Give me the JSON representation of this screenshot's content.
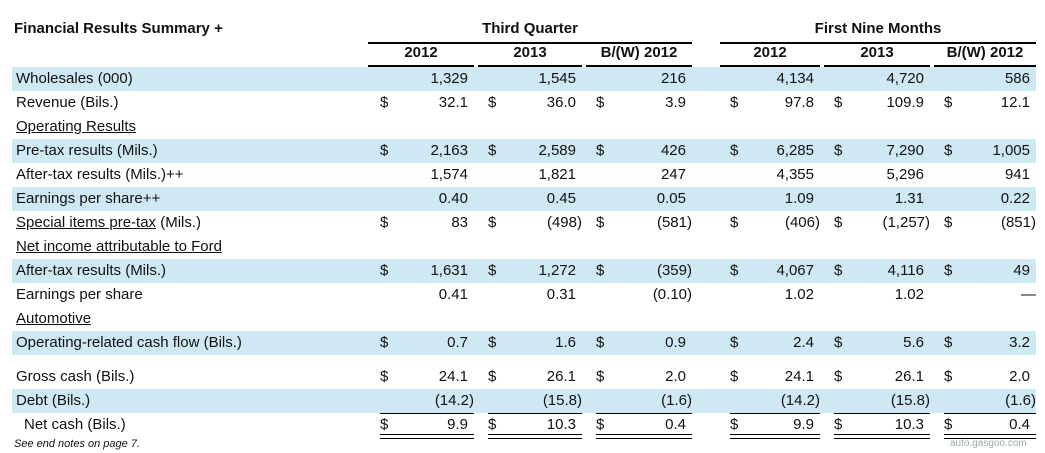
{
  "title": "Financial Results Summary +",
  "groups": [
    {
      "label": "Third Quarter"
    },
    {
      "label": "First Nine Months"
    }
  ],
  "columns": [
    "2012",
    "2013",
    "B/(W) 2012",
    "2012",
    "2013",
    "B/(W) 2012"
  ],
  "currency": "$",
  "rows": [
    {
      "label": "Wholesales (000)",
      "shade": true,
      "dollar": false,
      "values": [
        "1,329",
        "1,545",
        "216",
        "4,134",
        "4,720",
        "586"
      ]
    },
    {
      "label": "Revenue (Bils.)",
      "shade": false,
      "dollar": true,
      "values": [
        "32.1",
        "36.0",
        "3.9",
        "97.8",
        "109.9",
        "12.1"
      ]
    },
    {
      "label": "Operating Results",
      "shade": false,
      "section": true,
      "values": []
    },
    {
      "label": "Pre-tax results (Mils.)",
      "shade": true,
      "dollar": true,
      "values": [
        "2,163",
        "2,589",
        "426",
        "6,285",
        "7,290",
        "1,005"
      ]
    },
    {
      "label": "After-tax results (Mils.)++",
      "shade": false,
      "dollar": false,
      "values": [
        "1,574",
        "1,821",
        "247",
        "4,355",
        "5,296",
        "941"
      ]
    },
    {
      "label": "Earnings per share++",
      "shade": true,
      "dollar": false,
      "values": [
        "0.40",
        "0.45",
        "0.05",
        "1.09",
        "1.31",
        "0.22"
      ]
    },
    {
      "label": "Special items pre-tax",
      "label_suffix": " (Mils.)",
      "shade": false,
      "dollar": true,
      "underline_part": true,
      "values": [
        "83",
        "(498)",
        "(581)",
        "(406)",
        "(1,257)",
        "(851)"
      ]
    },
    {
      "label": "Net income attributable to Ford",
      "shade": false,
      "section": true,
      "values": []
    },
    {
      "label": "After-tax results (Mils.)",
      "shade": true,
      "dollar": true,
      "values": [
        "1,631",
        "1,272",
        "(359)",
        "4,067",
        "4,116",
        "49"
      ]
    },
    {
      "label": "Earnings per share",
      "shade": false,
      "dollar": false,
      "values": [
        "0.41",
        "0.31",
        "(0.10)",
        "1.02",
        "1.02",
        "—"
      ]
    },
    {
      "label": "Automotive",
      "shade": false,
      "section": true,
      "values": []
    },
    {
      "label": "Operating-related cash flow (Bils.)",
      "shade": true,
      "dollar": true,
      "values": [
        "0.7",
        "1.6",
        "0.9",
        "2.4",
        "5.6",
        "3.2"
      ]
    },
    {
      "label": "Gross cash (Bils.)",
      "shade": false,
      "dollar": true,
      "values": [
        "24.1",
        "26.1",
        "2.0",
        "24.1",
        "26.1",
        "2.0"
      ]
    },
    {
      "label": "Debt (Bils.)",
      "shade": true,
      "dollar": false,
      "values": [
        "(14.2)",
        "(15.8)",
        "(1.6)",
        "(14.2)",
        "(15.8)",
        "(1.6)"
      ]
    },
    {
      "label": "Net cash (Bils.)",
      "shade": false,
      "dollar": true,
      "indent": true,
      "values": [
        "9.9",
        "10.3",
        "0.4",
        "9.9",
        "10.3",
        "0.4"
      ]
    }
  ],
  "footnote": "See end notes on page 7.",
  "watermark": "auto.gasgoo.com"
}
